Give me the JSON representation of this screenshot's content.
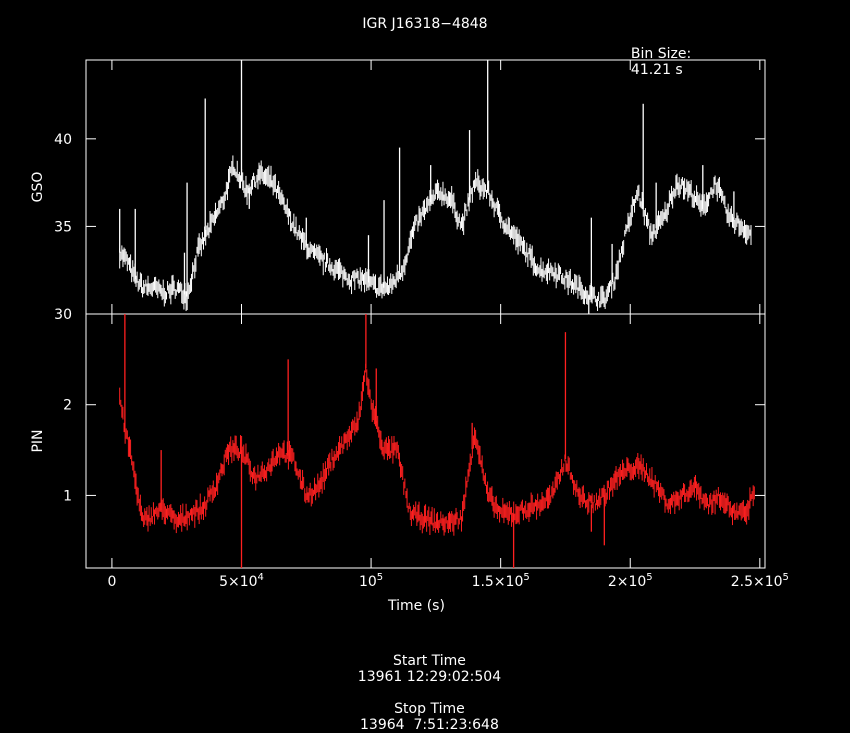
{
  "chart_data": {
    "type": "line",
    "title": "IGR J16318−4848",
    "bin_label": "Bin Size:",
    "bin_value": "41.21 s",
    "xlabel": "Time (s)",
    "xlim": [
      -10000,
      252000
    ],
    "xticks": [
      {
        "v": 0,
        "label": "0",
        "exp": ""
      },
      {
        "v": 50000,
        "label": "5×10",
        "exp": "4"
      },
      {
        "v": 100000,
        "label": "10",
        "exp": "5"
      },
      {
        "v": 150000,
        "label": "1.5×10",
        "exp": "5"
      },
      {
        "v": 200000,
        "label": "2×10",
        "exp": "5"
      },
      {
        "v": 250000,
        "label": "2.5×10",
        "exp": "5"
      }
    ],
    "panels": [
      {
        "ylabel": "GSO",
        "ylim": [
          30,
          44.5
        ],
        "yticks": [
          30,
          35,
          40
        ],
        "color": "#ffffff",
        "series": [
          {
            "x": [
              3000,
              6000,
              9000,
              12000,
              16000,
              20000,
              25000,
              29000,
              33000,
              38000,
              43000,
              47000,
              52000,
              57000,
              62000,
              67000,
              72000,
              77000,
              82000,
              87000,
              92000,
              97000,
              102000,
              107000,
              112000,
              117000,
              121000,
              126000,
              131000,
              135000,
              140000,
              145000,
              150000,
              155000,
              160000,
              165000,
              170000,
              175000,
              180000,
              185000,
              190000,
              194000,
              199000,
              203000,
              208000,
              213000,
              218000,
              223000,
              228000,
              233000,
              238000,
              243000,
              247000
            ],
            "y": [
              33.5,
              33,
              32,
              31.5,
              31.5,
              31.2,
              31.5,
              31,
              33.5,
              35,
              36.5,
              38.5,
              37,
              38,
              37.5,
              36,
              34.5,
              33.5,
              33,
              32.5,
              32,
              32,
              31.5,
              31.5,
              32.5,
              35,
              36,
              37,
              36.5,
              35,
              37.5,
              37,
              35.5,
              34.5,
              33.5,
              32.5,
              32.5,
              32,
              31.5,
              31,
              30.8,
              32,
              35,
              37,
              34.5,
              35.5,
              37.5,
              37,
              36,
              37.5,
              35.5,
              35,
              34.5
            ]
          }
        ],
        "spikes": [
          [
            3000,
            36
          ],
          [
            9000,
            36
          ],
          [
            28000,
            33.5
          ],
          [
            29000,
            37.5
          ],
          [
            36000,
            42.3
          ],
          [
            50000,
            44.5
          ],
          [
            53000,
            36
          ],
          [
            75000,
            35.5
          ],
          [
            99000,
            34.5
          ],
          [
            105000,
            36.5
          ],
          [
            111000,
            39.5
          ],
          [
            116000,
            35
          ],
          [
            123000,
            38.5
          ],
          [
            145000,
            44.5
          ],
          [
            138000,
            40.5
          ],
          [
            185000,
            35.5
          ],
          [
            193000,
            34
          ],
          [
            205000,
            42
          ],
          [
            210000,
            37.5
          ],
          [
            228000,
            38.5
          ],
          [
            240000,
            37
          ],
          [
            184000,
            29.8
          ]
        ]
      },
      {
        "ylabel": "PIN",
        "ylim": [
          0.2,
          3
        ],
        "yticks": [
          1,
          2
        ],
        "color": "#ff2020",
        "series": [
          {
            "x": [
              3000,
              5000,
              7000,
              10000,
              12000,
              16000,
              20000,
              25000,
              30000,
              35000,
              40000,
              45000,
              50000,
              55000,
              60000,
              65000,
              70000,
              75000,
              80000,
              85000,
              90000,
              95000,
              98000,
              100000,
              105000,
              110000,
              115000,
              120000,
              125000,
              130000,
              135000,
              140000,
              145000,
              150000,
              155000,
              160000,
              165000,
              170000,
              175000,
              180000,
              185000,
              190000,
              195000,
              200000,
              205000,
              210000,
              215000,
              220000,
              225000,
              230000,
              235000,
              240000,
              245000,
              248000
            ],
            "y": [
              2.1,
              1.7,
              1.5,
              1.0,
              0.7,
              0.8,
              0.85,
              0.7,
              0.8,
              0.85,
              1.1,
              1.5,
              1.5,
              1.2,
              1.3,
              1.5,
              1.4,
              1.0,
              1.1,
              1.4,
              1.6,
              1.8,
              2.4,
              2.0,
              1.5,
              1.5,
              0.8,
              0.75,
              0.7,
              0.7,
              0.75,
              1.7,
              1.0,
              0.8,
              0.8,
              0.85,
              0.9,
              1.0,
              1.4,
              1.0,
              0.9,
              1.0,
              1.2,
              1.3,
              1.3,
              1.1,
              0.9,
              1.0,
              1.1,
              0.9,
              1.0,
              0.8,
              0.8,
              1.1
            ]
          }
        ],
        "spikes": [
          [
            5000,
            3.0
          ],
          [
            19000,
            1.5
          ],
          [
            50000,
            0.2
          ],
          [
            68000,
            2.5
          ],
          [
            98000,
            3.0
          ],
          [
            102000,
            2.4
          ],
          [
            139000,
            1.8
          ],
          [
            155000,
            0.2
          ],
          [
            175000,
            2.8
          ],
          [
            190000,
            0.45
          ],
          [
            185000,
            0.6
          ]
        ]
      }
    ],
    "footer": {
      "start_label": "Start Time",
      "start_value": "13961 12:29:02:504",
      "stop_label": "Stop Time",
      "stop_value": "13964  7:51:23:648"
    }
  }
}
